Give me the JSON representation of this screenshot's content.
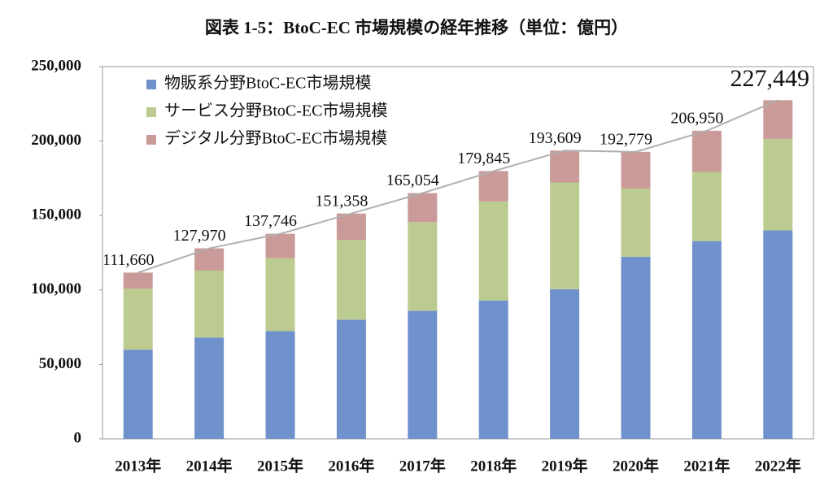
{
  "chart_data": {
    "type": "stacked_bar",
    "title": "図表 1-5：BtoC-EC 市場規模の経年推移（単位：億円）",
    "categories": [
      "2013年",
      "2014年",
      "2015年",
      "2016年",
      "2017年",
      "2018年",
      "2019年",
      "2020年",
      "2021年",
      "2022年"
    ],
    "series": [
      {
        "name": "物販系分野BtoC-EC市場規模",
        "color": "#7092cc",
        "values": [
          59931,
          68043,
          72398,
          80043,
          86008,
          92992,
          100515,
          122333,
          132865,
          139997
        ]
      },
      {
        "name": "サービス分野BtoC-EC市場規模",
        "color": "#bccb8f",
        "values": [
          41000,
          45000,
          49000,
          53532,
          59568,
          66471,
          71672,
          45832,
          46424,
          61477
        ]
      },
      {
        "name": "デジタル分野BtoC-EC市場規模",
        "color": "#c99a98",
        "values": [
          10729,
          14927,
          16348,
          17783,
          19478,
          20382,
          21422,
          24614,
          27661,
          25974
        ]
      }
    ],
    "totals": [
      111660,
      127970,
      137746,
      151358,
      165054,
      179845,
      193609,
      192779,
      206950,
      227449
    ],
    "value_labels": [
      "111,660",
      "127,970",
      "137,746",
      "151,358",
      "165,054",
      "179,845",
      "193,609",
      "192,779",
      "206,950",
      "227,449"
    ],
    "line_color": "#b0b0b0",
    "ylim": [
      0,
      250000
    ],
    "yticks": [
      0,
      {
        "value": 50000,
        "label": "50,000"
      },
      {
        "value": 100000,
        "label": "100,000"
      },
      {
        "value": 150000,
        "label": "150,000"
      },
      {
        "value": 200000,
        "label": "200,000"
      },
      {
        "value": 250000,
        "label": "250,000"
      }
    ],
    "legend": "upper-left"
  }
}
